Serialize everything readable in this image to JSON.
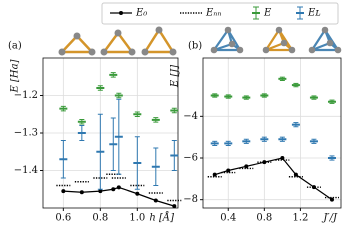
{
  "chart_data": [
    {
      "type": "errorbar",
      "panel": "(a)",
      "ylabel": "E [Ha]",
      "xlabel": "h [Å]",
      "x": [
        0.6,
        0.7,
        0.8,
        0.87,
        0.9,
        1.0,
        1.1,
        1.2
      ],
      "xlim": [
        0.49,
        1.22
      ],
      "xticks": [
        0.6,
        0.8,
        {
          "value": 1,
          "label": "1.0"
        }
      ],
      "ylim": [
        -1.5,
        -1.1
      ],
      "yticks": [
        {
          "value": -1.2,
          "label": "−1.2"
        },
        {
          "value": -1.3,
          "label": "−1.3"
        },
        {
          "value": -1.4,
          "label": "−1.4"
        }
      ],
      "grid": true,
      "series": [
        {
          "name": "E₀",
          "style": "line",
          "color": "#000000",
          "values": [
            -1.455,
            -1.458,
            -1.455,
            -1.45,
            -1.445,
            -1.462,
            -1.48,
            -1.495
          ]
        },
        {
          "name": "Eₙₙ",
          "style": "dotted",
          "color": "#000000",
          "values": [
            -1.44,
            -1.43,
            -1.42,
            -1.41,
            -1.42,
            -1.44,
            -1.46,
            -1.48
          ]
        },
        {
          "name": "E",
          "style": "errorbar",
          "color": "#3a9a3a",
          "values": [
            -1.235,
            -1.27,
            -1.18,
            -1.145,
            -1.2,
            -1.25,
            -1.265,
            -1.24
          ],
          "errors": [
            0.006,
            0.006,
            0.006,
            0.006,
            0.006,
            0.006,
            0.006,
            0.006
          ]
        },
        {
          "name": "Eʟ",
          "style": "errorbar",
          "color": "#2f78b0",
          "values": [
            -1.37,
            -1.3,
            -1.35,
            -1.33,
            -1.31,
            -1.38,
            -1.39,
            -1.36
          ],
          "errors": [
            0.05,
            0.02,
            0.1,
            0.07,
            0.1,
            0.07,
            0.05,
            0.04
          ]
        }
      ]
    },
    {
      "type": "errorbar",
      "panel": "(b)",
      "ylabel": "E [J]",
      "xlabel": "J′/J",
      "x": [
        0.25,
        0.4,
        0.6,
        0.8,
        1.0,
        1.15,
        1.35,
        1.55
      ],
      "xlim": [
        0.12,
        1.65
      ],
      "xticks": [
        0.4,
        0.8,
        1.2
      ],
      "ylim": [
        -8.4,
        -1.2
      ],
      "yticks": [
        {
          "value": -4,
          "label": "−4"
        },
        {
          "value": -6,
          "label": "−6"
        },
        {
          "value": -8,
          "label": "−8"
        }
      ],
      "grid": true,
      "series": [
        {
          "style": "line",
          "color": "#000000",
          "values": [
            -6.8,
            -6.6,
            -6.4,
            -6.2,
            -6.0,
            -6.8,
            -7.4,
            -8.0
          ]
        },
        {
          "style": "dotted",
          "color": "#000000",
          "values": [
            -6.9,
            -6.7,
            -6.5,
            -6.2,
            -6.1,
            -6.9,
            -7.4,
            -7.9
          ]
        },
        {
          "style": "errorbar",
          "color": "#3a9a3a",
          "values": [
            -3.0,
            -3.05,
            -3.1,
            -3.0,
            -2.2,
            -2.5,
            -3.1,
            -3.3
          ],
          "errors": [
            0.08,
            0.08,
            0.08,
            0.08,
            0.08,
            0.08,
            0.08,
            0.08
          ]
        },
        {
          "style": "errorbar",
          "color": "#2f78b0",
          "values": [
            -5.3,
            -5.3,
            -5.2,
            -5.1,
            -5.1,
            -4.4,
            -5.2,
            -6.0
          ],
          "errors": [
            0.1,
            0.1,
            0.1,
            0.1,
            0.1,
            0.1,
            0.1,
            0.1
          ]
        }
      ]
    }
  ]
}
